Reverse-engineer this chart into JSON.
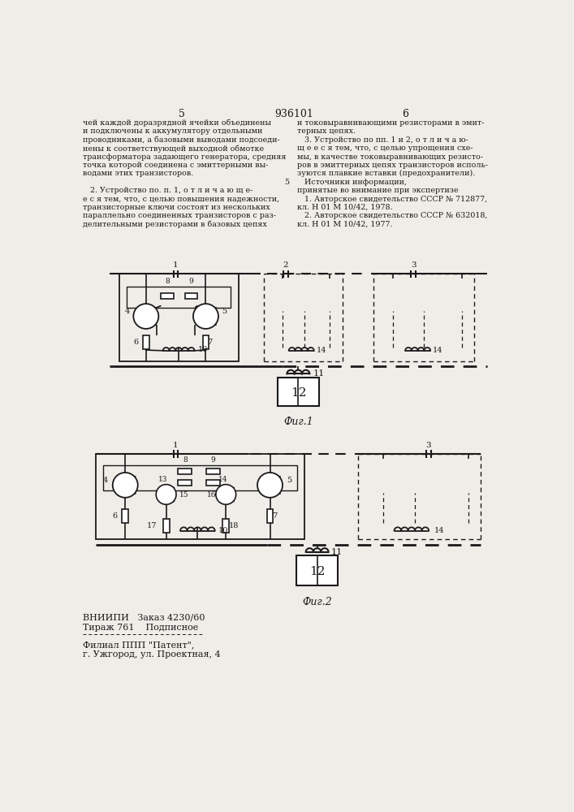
{
  "bg_color": "#f0ede8",
  "line_color": "#1a1a1a",
  "col1_text": [
    "чей каждой доразрядной ячейки объединены",
    "и подключены к аккумулятору отдельными",
    "проводниками, а базовыми выводами подсоеди-",
    "нены к соответствующей выходной обмотке",
    "трансформатора задающего генератора, средняя",
    "точка которой соединена с эмиттерными вы-",
    "водами этих транзисторов.",
    "",
    "   2. Устройство по. п. 1, о т л и ч а ю щ е-",
    "е с я тем, что, с целью повышения надежности,",
    "транзисторные ключи состоят из нескольких",
    "параллельно соединенных транзисторов с раз-",
    "делительными резисторами в базовых цепях"
  ],
  "col2_text": [
    "и токовыравнивающими резисторами в эмит-",
    "терных цепях.",
    "   3. Устройство по пп. 1 и 2, о т л и ч а ю-",
    "щ е е с я тем, что, с целью упрощения схе-",
    "мы, в качестве токовыравнивающих резисто-",
    "ров в эмиттерных цепях транзисторов исполь-",
    "зуются плавкие вставки (предохранители).",
    "   Источники информации,",
    "принятые во внимание при экспертизе",
    "   1. Авторское свидетельство СССР № 712877,",
    "кл. Н 01 М 10/42, 1978.",
    "   2. Авторское свидетельство СССР № 632018,",
    "кл. Н 01 М 10/42, 1977."
  ],
  "fig1_label": "Фиг.1",
  "fig2_label": "Фиг.2",
  "footer_line1": "ВНИИПИ   Заказ 4230/60",
  "footer_line2": "Тираж 761    Подписное",
  "footer_line3": "Филиал ППП \"Патент\",",
  "footer_line4": "г. Ужгород, ул. Проектная, 4"
}
